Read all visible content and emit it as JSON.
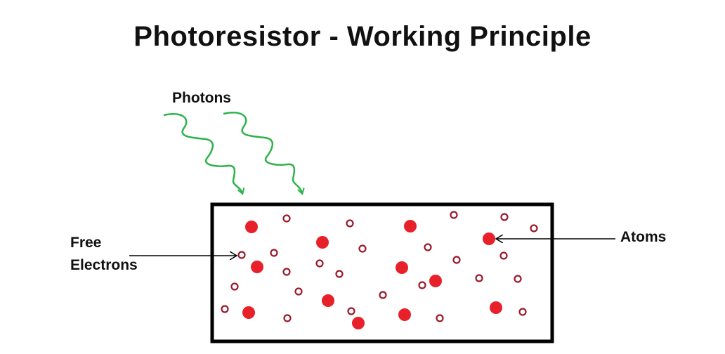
{
  "title": "Photoresistor - Working Principle",
  "labels": {
    "photons": "Photons",
    "free_line1": "Free",
    "free_line2": "Electrons",
    "atoms": "Atoms"
  },
  "colors": {
    "photon": "#2db34a",
    "atom": "#e8202a",
    "electron": "#9a1a2c",
    "outline": "#000000"
  },
  "particles": {
    "atoms": 12,
    "free_electrons": 25
  }
}
